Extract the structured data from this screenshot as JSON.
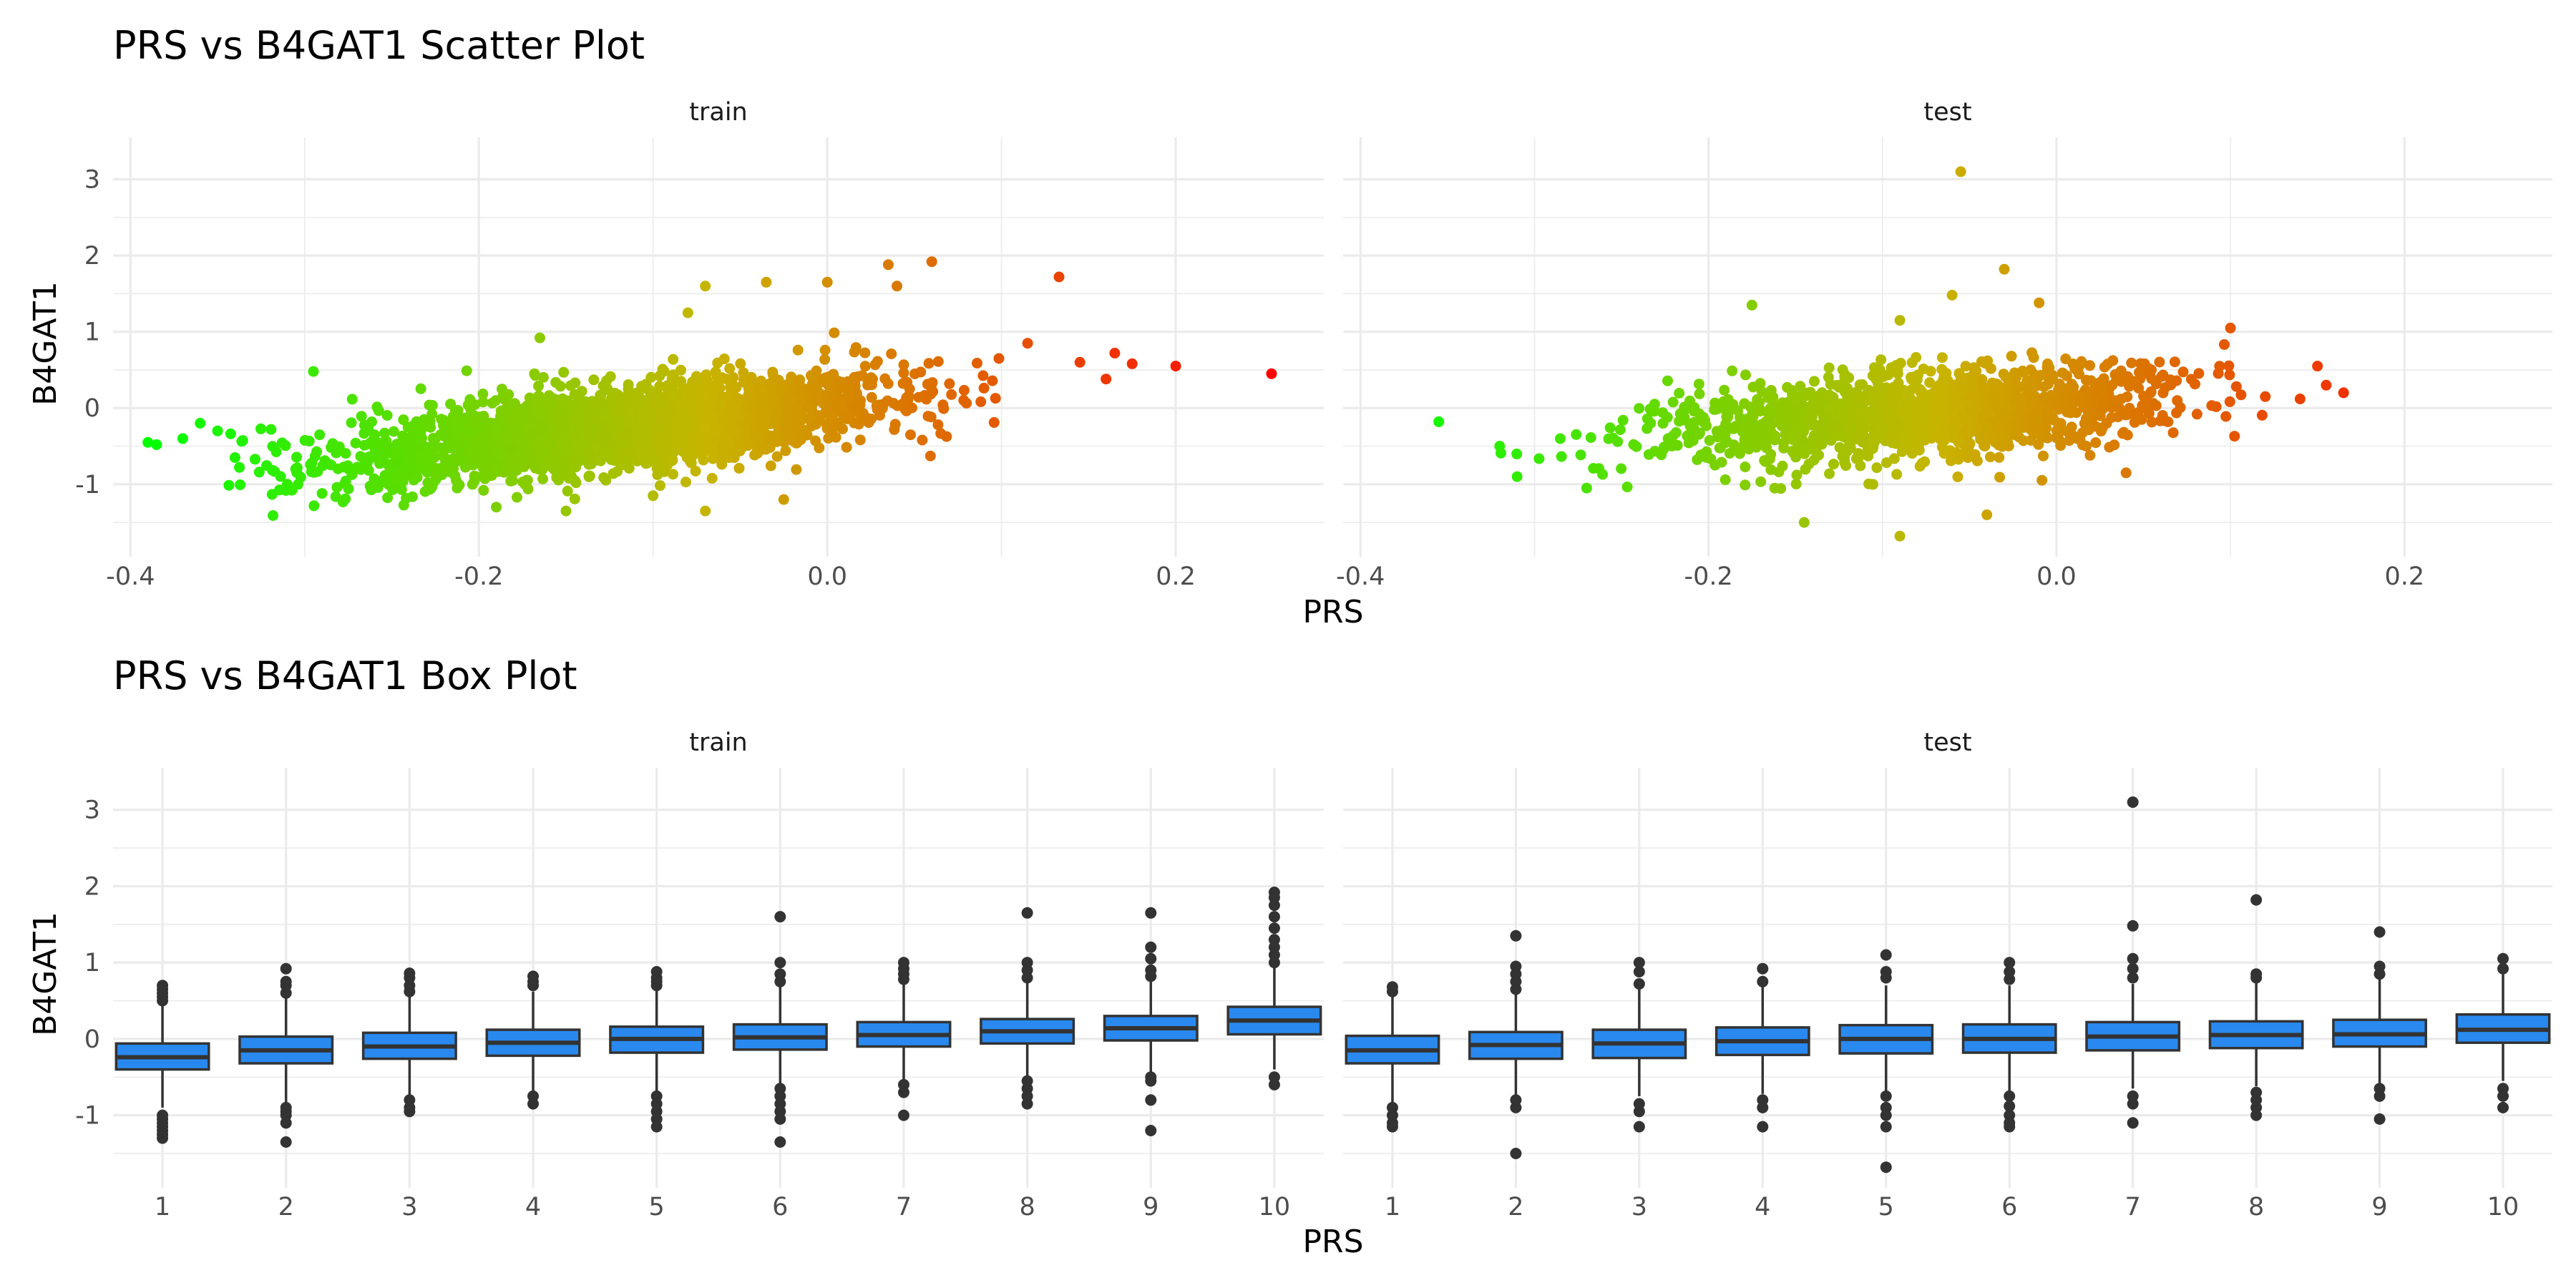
{
  "chart_data": [
    {
      "type": "scatter",
      "title": "PRS vs B4GAT1 Scatter Plot",
      "xlabel": "PRS",
      "ylabel": "B4GAT1",
      "xlim": [
        -0.41,
        0.285
      ],
      "ylim": [
        -1.95,
        3.55
      ],
      "x_ticks": [
        "-0.4",
        "-0.2",
        "0.0",
        "0.2"
      ],
      "y_ticks": [
        "3",
        "2",
        "1",
        "0",
        "-1"
      ],
      "grid": true,
      "color_scale": {
        "low": "#00ff00",
        "mid": "#c8b400",
        "high": "#ff0000",
        "by": "PRS"
      },
      "panels": [
        {
          "name": "train",
          "cloud": {
            "center_x": -0.12,
            "sd_x": 0.075,
            "n": 2600,
            "slope": 2.6,
            "intercept": 0.05,
            "noise_sd": 0.27,
            "x_range": [
              -0.345,
              0.1
            ]
          },
          "points": [
            {
              "x": 0.255,
              "y": 0.45
            },
            {
              "x": 0.2,
              "y": 0.55
            },
            {
              "x": 0.175,
              "y": 0.58
            },
            {
              "x": 0.165,
              "y": 0.72
            },
            {
              "x": 0.16,
              "y": 0.38
            },
            {
              "x": 0.145,
              "y": 0.6
            },
            {
              "x": 0.133,
              "y": 1.72
            },
            {
              "x": 0.115,
              "y": 0.85
            },
            {
              "x": 0.06,
              "y": 1.92
            },
            {
              "x": 0.035,
              "y": 1.88
            },
            {
              "x": 0.04,
              "y": 1.6
            },
            {
              "x": 0.0,
              "y": 1.65
            },
            {
              "x": -0.035,
              "y": 1.65
            },
            {
              "x": -0.07,
              "y": 1.6
            },
            {
              "x": -0.08,
              "y": 1.25
            },
            {
              "x": -0.165,
              "y": 0.92
            },
            {
              "x": -0.295,
              "y": 0.48
            },
            {
              "x": -0.385,
              "y": -0.48
            },
            {
              "x": -0.39,
              "y": -0.45
            },
            {
              "x": -0.37,
              "y": -0.4
            },
            {
              "x": -0.36,
              "y": -0.2
            },
            {
              "x": -0.35,
              "y": -0.3
            },
            {
              "x": -0.34,
              "y": -0.65
            },
            {
              "x": -0.31,
              "y": -1.0
            },
            {
              "x": -0.29,
              "y": -1.12
            },
            {
              "x": -0.19,
              "y": -1.3
            },
            {
              "x": -0.15,
              "y": -1.35
            },
            {
              "x": -0.07,
              "y": -1.35
            },
            {
              "x": -0.025,
              "y": -1.2
            },
            {
              "x": -0.1,
              "y": -1.15
            }
          ]
        },
        {
          "name": "test",
          "cloud": {
            "center_x": -0.08,
            "sd_x": 0.07,
            "n": 1500,
            "slope": 1.6,
            "intercept": 0.05,
            "noise_sd": 0.28,
            "x_range": [
              -0.32,
              0.12
            ]
          },
          "points": [
            {
              "x": -0.055,
              "y": 3.1
            },
            {
              "x": -0.03,
              "y": 1.82
            },
            {
              "x": -0.06,
              "y": 1.48
            },
            {
              "x": -0.01,
              "y": 1.38
            },
            {
              "x": -0.175,
              "y": 1.35
            },
            {
              "x": -0.09,
              "y": 1.15
            },
            {
              "x": 0.1,
              "y": 1.05
            },
            {
              "x": 0.165,
              "y": 0.2
            },
            {
              "x": 0.155,
              "y": 0.3
            },
            {
              "x": 0.15,
              "y": 0.55
            },
            {
              "x": 0.14,
              "y": 0.12
            },
            {
              "x": 0.12,
              "y": 0.15
            },
            {
              "x": -0.355,
              "y": -0.18
            },
            {
              "x": -0.32,
              "y": -0.5
            },
            {
              "x": -0.31,
              "y": -0.9
            },
            {
              "x": -0.27,
              "y": -1.05
            },
            {
              "x": -0.145,
              "y": -1.5
            },
            {
              "x": -0.09,
              "y": -1.68
            },
            {
              "x": -0.04,
              "y": -1.4
            },
            {
              "x": 0.04,
              "y": -0.85
            }
          ]
        }
      ]
    },
    {
      "type": "box",
      "title": "PRS vs B4GAT1 Box Plot",
      "xlabel": "PRS",
      "ylabel": "B4GAT1",
      "categories": [
        "1",
        "2",
        "3",
        "4",
        "5",
        "6",
        "7",
        "8",
        "9",
        "10"
      ],
      "ylim": [
        -1.95,
        3.55
      ],
      "y_ticks": [
        "3",
        "2",
        "1",
        "0",
        "-1"
      ],
      "box_fill": "#2989ef",
      "box_stroke": "#333333",
      "grid": true,
      "panels": [
        {
          "name": "train",
          "boxes": [
            {
              "q1": -0.4,
              "median": -0.24,
              "q3": -0.06,
              "lower": -0.9,
              "upper": 0.48,
              "outliers": [
                0.5,
                0.55,
                0.6,
                0.65,
                0.7,
                -1.0,
                -1.05,
                -1.1,
                -1.15,
                -1.2,
                -1.25,
                -1.3
              ]
            },
            {
              "q1": -0.32,
              "median": -0.15,
              "q3": 0.03,
              "lower": -0.85,
              "upper": 0.55,
              "outliers": [
                0.6,
                0.7,
                0.75,
                0.92,
                -0.9,
                -0.95,
                -1.0,
                -1.1,
                -1.35
              ]
            },
            {
              "q1": -0.26,
              "median": -0.1,
              "q3": 0.08,
              "lower": -0.78,
              "upper": 0.58,
              "outliers": [
                0.62,
                0.7,
                0.8,
                0.86,
                -0.8,
                -0.9,
                -0.95
              ]
            },
            {
              "q1": -0.22,
              "median": -0.05,
              "q3": 0.12,
              "lower": -0.7,
              "upper": 0.62,
              "outliers": [
                0.7,
                0.75,
                0.82,
                -0.75,
                -0.85
              ]
            },
            {
              "q1": -0.18,
              "median": 0.0,
              "q3": 0.16,
              "lower": -0.68,
              "upper": 0.65,
              "outliers": [
                0.7,
                0.75,
                0.8,
                0.88,
                -0.75,
                -0.85,
                -0.95,
                -1.05,
                -1.15
              ]
            },
            {
              "q1": -0.14,
              "median": 0.02,
              "q3": 0.19,
              "lower": -0.6,
              "upper": 0.7,
              "outliers": [
                0.75,
                0.85,
                1.0,
                1.6,
                -0.65,
                -0.75,
                -0.85,
                -0.95,
                -1.05,
                -1.35
              ]
            },
            {
              "q1": -0.1,
              "median": 0.05,
              "q3": 0.22,
              "lower": -0.55,
              "upper": 0.72,
              "outliers": [
                0.78,
                0.85,
                0.92,
                1.0,
                -0.6,
                -0.7,
                -1.0
              ]
            },
            {
              "q1": -0.06,
              "median": 0.1,
              "q3": 0.26,
              "lower": -0.5,
              "upper": 0.75,
              "outliers": [
                0.8,
                0.9,
                1.0,
                1.65,
                -0.55,
                -0.65,
                -0.75,
                -0.85
              ]
            },
            {
              "q1": -0.02,
              "median": 0.14,
              "q3": 0.3,
              "lower": -0.45,
              "upper": 0.78,
              "outliers": [
                0.82,
                0.9,
                1.05,
                1.2,
                1.65,
                -0.5,
                -0.55,
                -0.8,
                -1.2
              ]
            },
            {
              "q1": 0.06,
              "median": 0.24,
              "q3": 0.42,
              "lower": -0.4,
              "upper": 0.95,
              "outliers": [
                1.0,
                1.1,
                1.2,
                1.3,
                1.45,
                1.6,
                1.75,
                1.85,
                1.92,
                -0.5,
                -0.6
              ]
            }
          ]
        },
        {
          "name": "test",
          "boxes": [
            {
              "q1": -0.32,
              "median": -0.15,
              "q3": 0.04,
              "lower": -0.85,
              "upper": 0.58,
              "outliers": [
                0.62,
                0.68,
                -0.9,
                -1.0,
                -1.1,
                -1.15
              ]
            },
            {
              "q1": -0.26,
              "median": -0.08,
              "q3": 0.09,
              "lower": -0.78,
              "upper": 0.6,
              "outliers": [
                0.65,
                0.75,
                0.85,
                0.95,
                1.35,
                -0.8,
                -0.9,
                -1.5
              ]
            },
            {
              "q1": -0.25,
              "median": -0.06,
              "q3": 0.12,
              "lower": -0.75,
              "upper": 0.65,
              "outliers": [
                0.72,
                0.88,
                1.0,
                -0.85,
                -0.95,
                -1.15
              ]
            },
            {
              "q1": -0.21,
              "median": -0.03,
              "q3": 0.15,
              "lower": -0.72,
              "upper": 0.68,
              "outliers": [
                0.75,
                0.92,
                -0.8,
                -0.9,
                -1.15
              ]
            },
            {
              "q1": -0.19,
              "median": 0.0,
              "q3": 0.18,
              "lower": -0.7,
              "upper": 0.7,
              "outliers": [
                0.8,
                0.88,
                1.1,
                -0.75,
                -0.9,
                -1.0,
                -1.15,
                -1.68
              ]
            },
            {
              "q1": -0.18,
              "median": 0.0,
              "q3": 0.19,
              "lower": -0.68,
              "upper": 0.7,
              "outliers": [
                0.78,
                0.88,
                1.0,
                -0.75,
                -0.88,
                -1.0,
                -1.1,
                -1.15
              ]
            },
            {
              "q1": -0.15,
              "median": 0.03,
              "q3": 0.22,
              "lower": -0.65,
              "upper": 0.72,
              "outliers": [
                0.8,
                0.92,
                1.05,
                1.48,
                3.1,
                -0.75,
                -0.85,
                -1.1
              ]
            },
            {
              "q1": -0.12,
              "median": 0.05,
              "q3": 0.23,
              "lower": -0.62,
              "upper": 0.75,
              "outliers": [
                0.8,
                0.85,
                1.82,
                -0.7,
                -0.8,
                -0.9,
                -1.0
              ]
            },
            {
              "q1": -0.1,
              "median": 0.06,
              "q3": 0.25,
              "lower": -0.6,
              "upper": 0.78,
              "outliers": [
                0.85,
                0.95,
                1.4,
                -0.65,
                -0.75,
                -1.05
              ]
            },
            {
              "q1": -0.05,
              "median": 0.12,
              "q3": 0.32,
              "lower": -0.55,
              "upper": 0.85,
              "outliers": [
                0.92,
                1.05,
                -0.65,
                -0.75,
                -0.9
              ]
            }
          ]
        }
      ]
    }
  ]
}
